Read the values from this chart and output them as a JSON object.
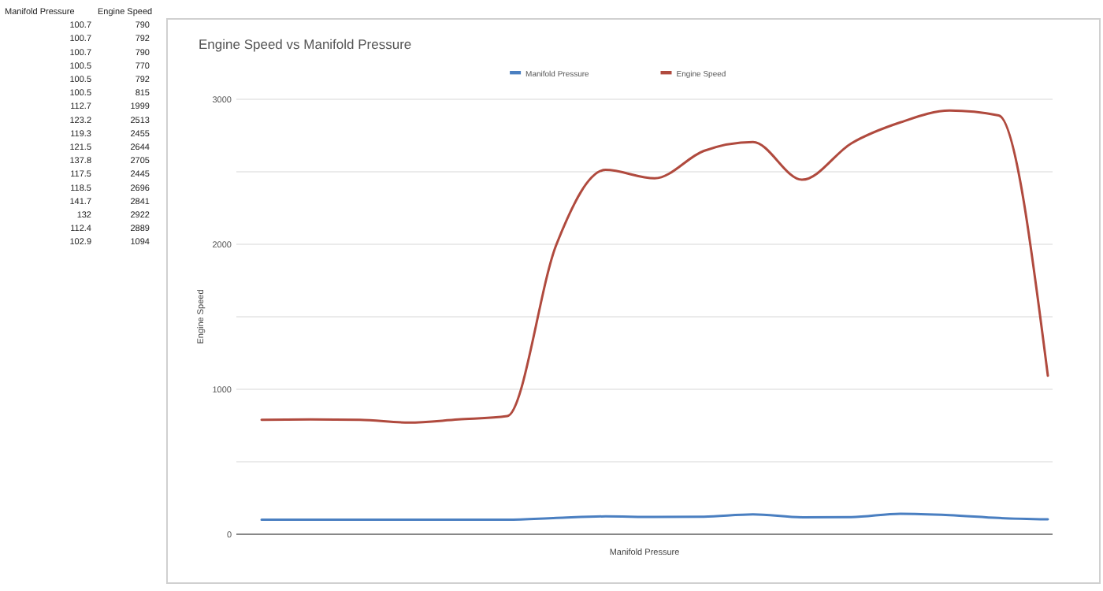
{
  "chart_data": {
    "type": "line",
    "title": "Engine Speed vs Manifold Pressure",
    "xlabel": "Manifold Pressure",
    "ylabel": "Engine Speed",
    "categories": [
      null,
      null,
      null,
      null,
      null,
      null,
      null,
      null,
      null,
      null,
      null,
      null,
      null,
      null,
      null,
      null,
      null
    ],
    "series": [
      {
        "name": "Manifold Pressure",
        "color": "#4a7fc1",
        "values": [
          100.7,
          100.7,
          100.7,
          100.5,
          100.5,
          100.5,
          112.7,
          123.2,
          119.3,
          121.5,
          137.8,
          117.5,
          118.5,
          141.7,
          132,
          112.4,
          102.9
        ]
      },
      {
        "name": "Engine Speed",
        "color": "#b04a3e",
        "values": [
          790,
          792,
          790,
          770,
          792,
          815,
          1999,
          2513,
          2455,
          2644,
          2705,
          2445,
          2696,
          2841,
          2922,
          2889,
          1094
        ]
      }
    ],
    "ylim": [
      0,
      3000
    ],
    "yticks": [
      0,
      {
        "value": 500,
        "label": null
      },
      1000,
      {
        "value": 1500,
        "label": null
      },
      2000,
      {
        "value": 2500,
        "label": null
      },
      3000
    ],
    "grid": true,
    "legend": "top",
    "marker": "none",
    "line_style": "solid",
    "annotations": [
      "100.7",
      "100.7",
      "100.7",
      "100.5",
      "100.5",
      "100.5",
      "112.7",
      "123.2",
      "119.3",
      "121.5",
      "137.8",
      "117.5",
      "118.5",
      "141.7",
      "132",
      "112.4",
      "102.9",
      "790",
      "792",
      "790",
      "770",
      "792",
      "815",
      "1999",
      "2513",
      "2455",
      "2644",
      "2705",
      "2445",
      "2696",
      "2841",
      "2922",
      "2889",
      "1094"
    ]
  }
}
